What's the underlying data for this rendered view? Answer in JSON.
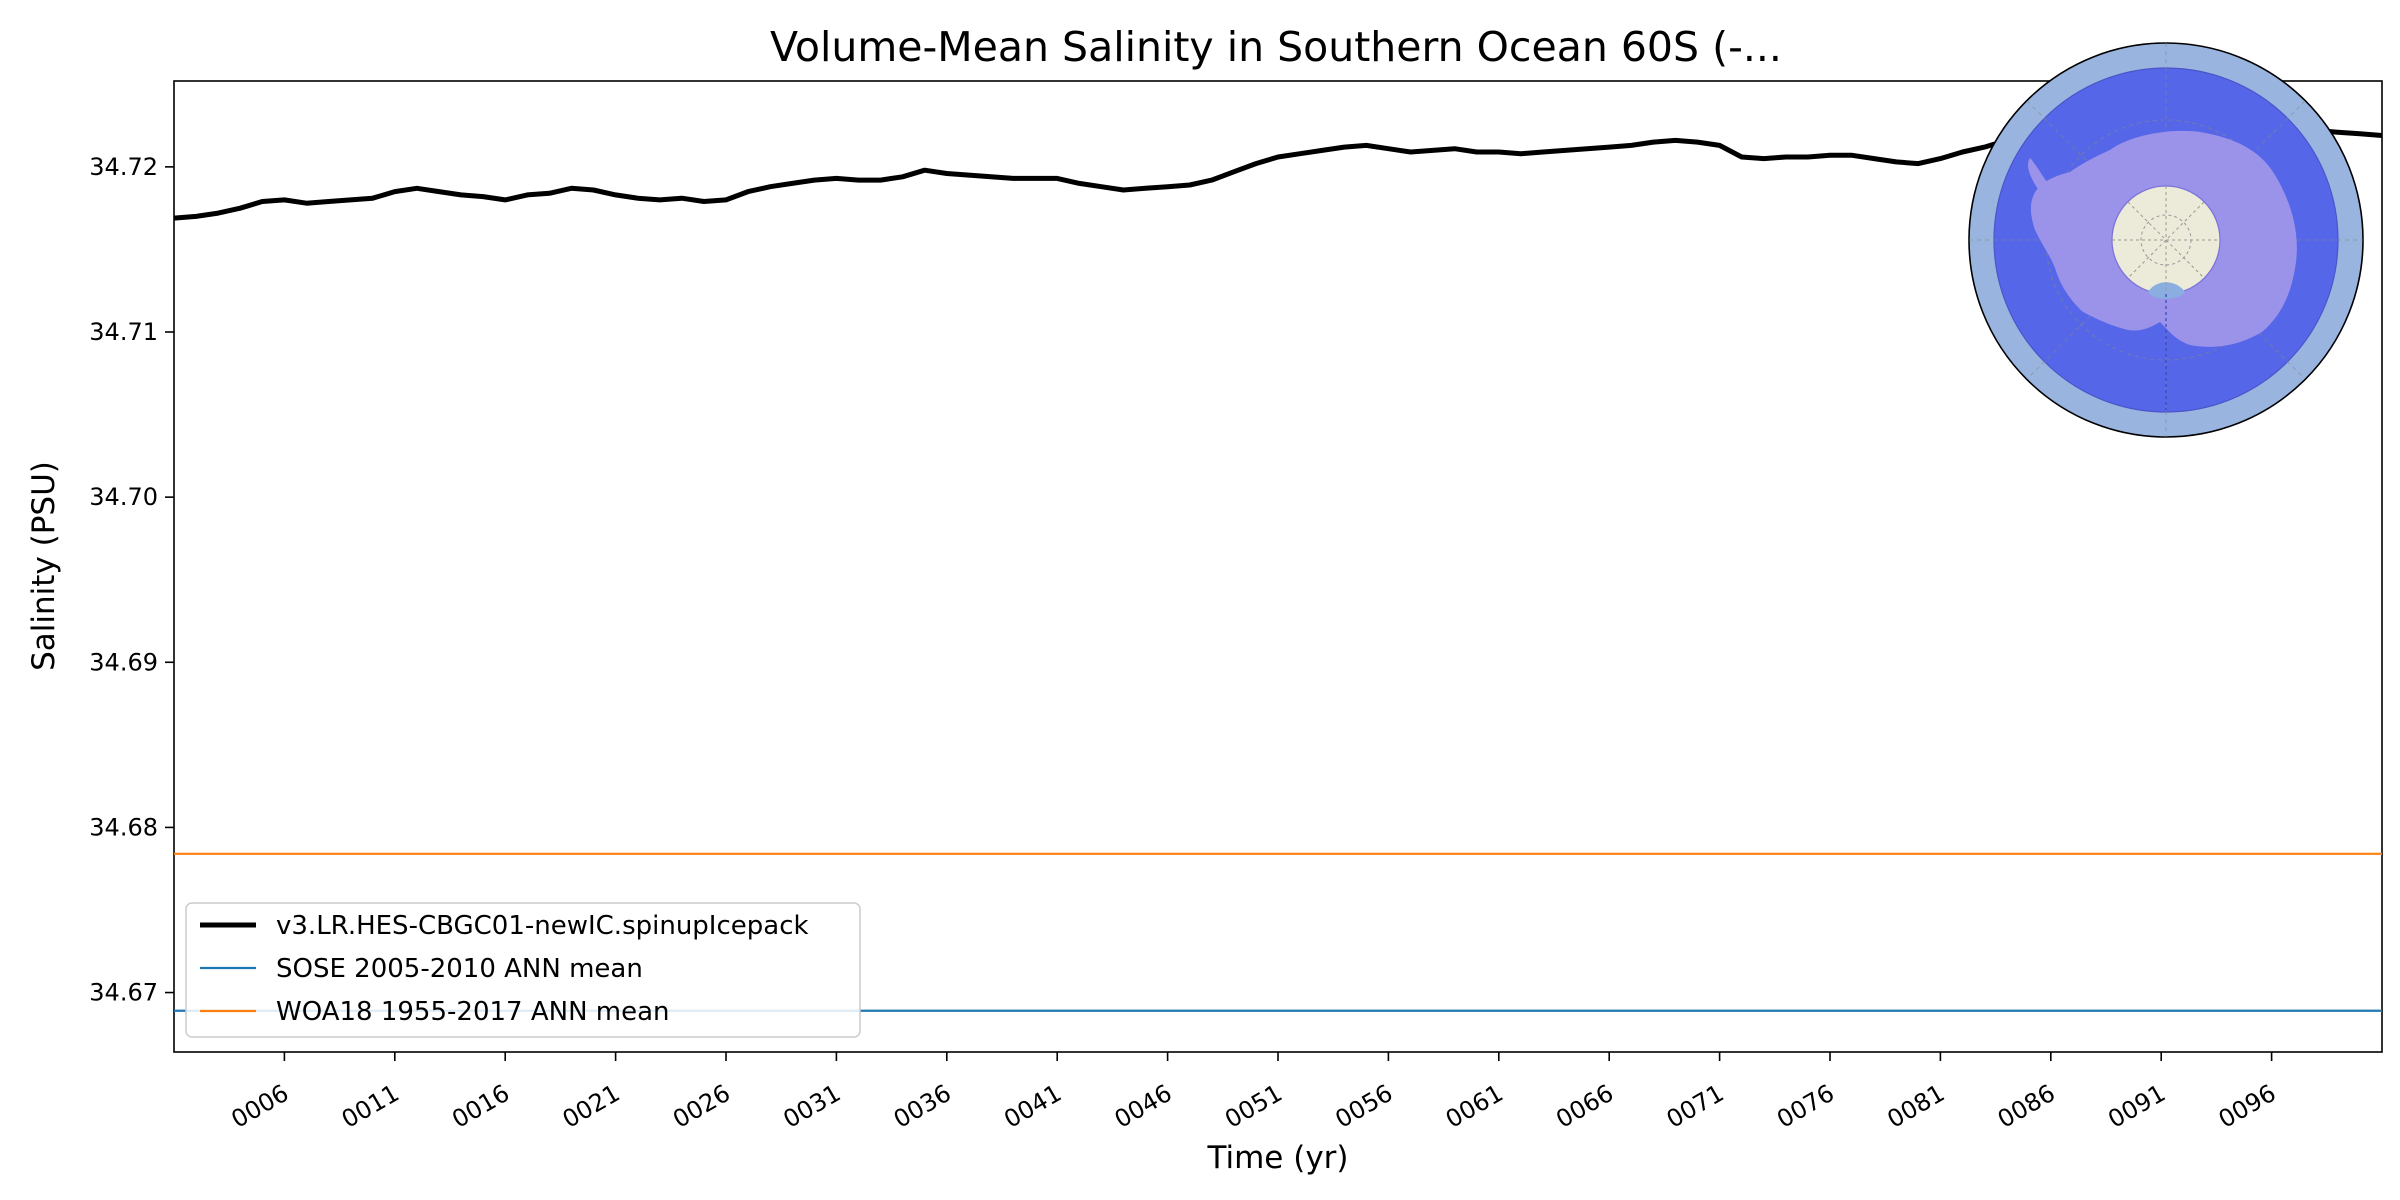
{
  "chart_data": {
    "type": "line",
    "title": "Volume-Mean Salinity in Southern Ocean 60S (-...",
    "xlabel": "Time (yr)",
    "ylabel": "Salinity (PSU)",
    "xlim": [
      1,
      101
    ],
    "ylim": [
      34.6664,
      34.7252
    ],
    "x_ticks": [
      6,
      11,
      16,
      21,
      26,
      31,
      36,
      41,
      46,
      51,
      56,
      61,
      66,
      71,
      76,
      81,
      86,
      91,
      96
    ],
    "x_tick_labels": [
      "0006",
      "0011",
      "0016",
      "0021",
      "0026",
      "0031",
      "0036",
      "0041",
      "0046",
      "0051",
      "0056",
      "0061",
      "0066",
      "0071",
      "0076",
      "0081",
      "0086",
      "0091",
      "0096"
    ],
    "y_ticks": [
      34.67,
      34.68,
      34.69,
      34.7,
      34.71,
      34.72
    ],
    "y_tick_labels": [
      "34.67",
      "34.68",
      "34.69",
      "34.70",
      "34.71",
      "34.72"
    ],
    "grid": false,
    "legend_position": "bottom-left",
    "series": [
      {
        "name": "v3.LR.HES-CBGC01-newIC.spinupIcepack",
        "color": "#000000",
        "style": "thick-line",
        "x": [
          1,
          2,
          3,
          4,
          5,
          6,
          7,
          8,
          9,
          10,
          11,
          12,
          13,
          14,
          15,
          16,
          17,
          18,
          19,
          20,
          21,
          22,
          23,
          24,
          25,
          26,
          27,
          28,
          29,
          30,
          31,
          32,
          33,
          34,
          35,
          36,
          37,
          38,
          39,
          40,
          41,
          42,
          43,
          44,
          45,
          46,
          47,
          48,
          49,
          50,
          51,
          52,
          53,
          54,
          55,
          56,
          57,
          58,
          59,
          60,
          61,
          62,
          63,
          64,
          65,
          66,
          67,
          68,
          69,
          70,
          71,
          72,
          73,
          74,
          75,
          76,
          77,
          78,
          79,
          80,
          81,
          82,
          83,
          84,
          85,
          86,
          87,
          88,
          89,
          90,
          91,
          92,
          93,
          94,
          95,
          96,
          97,
          98,
          99,
          100,
          101
        ],
        "values": [
          34.7169,
          34.717,
          34.7172,
          34.7175,
          34.7179,
          34.718,
          34.7178,
          34.7179,
          34.718,
          34.7181,
          34.7185,
          34.7187,
          34.7185,
          34.7183,
          34.7182,
          34.718,
          34.7183,
          34.7184,
          34.7187,
          34.7186,
          34.7183,
          34.7181,
          34.718,
          34.7181,
          34.7179,
          34.718,
          34.7185,
          34.7188,
          34.719,
          34.7192,
          34.7193,
          34.7192,
          34.7192,
          34.7194,
          34.7198,
          34.7196,
          34.7195,
          34.7194,
          34.7193,
          34.7193,
          34.7193,
          34.719,
          34.7188,
          34.7186,
          34.7187,
          34.7188,
          34.7189,
          34.7192,
          34.7197,
          34.7202,
          34.7206,
          34.7208,
          34.721,
          34.7212,
          34.7213,
          34.7211,
          34.7209,
          34.721,
          34.7211,
          34.7209,
          34.7209,
          34.7208,
          34.7209,
          34.721,
          34.7211,
          34.7212,
          34.7213,
          34.7215,
          34.7216,
          34.7215,
          34.7213,
          34.7206,
          34.7205,
          34.7206,
          34.7206,
          34.7207,
          34.7207,
          34.7205,
          34.7203,
          34.7202,
          34.7205,
          34.7209,
          34.7212,
          34.7216,
          34.7219,
          34.722,
          34.7221,
          34.7222,
          34.7222,
          34.7223,
          34.7222,
          34.7221,
          34.7222,
          34.7222,
          34.7221,
          34.722,
          34.7221,
          34.7222,
          34.7221,
          34.722,
          34.7219
        ]
      },
      {
        "name": "SOSE 2005-2010 ANN mean",
        "color": "#1f77b4",
        "style": "hline",
        "value": 34.6689
      },
      {
        "name": "WOA18 1955-2017 ANN mean",
        "color": "#ff7f0e",
        "style": "hline",
        "value": 34.6784
      }
    ]
  },
  "inset_map": {
    "icon": "antarctic-polar-map-icon",
    "outer_color": "#9ab4e0",
    "region_color": "#5566e8",
    "land_color": "#9b93ea",
    "pole_color": "#ecead8"
  }
}
